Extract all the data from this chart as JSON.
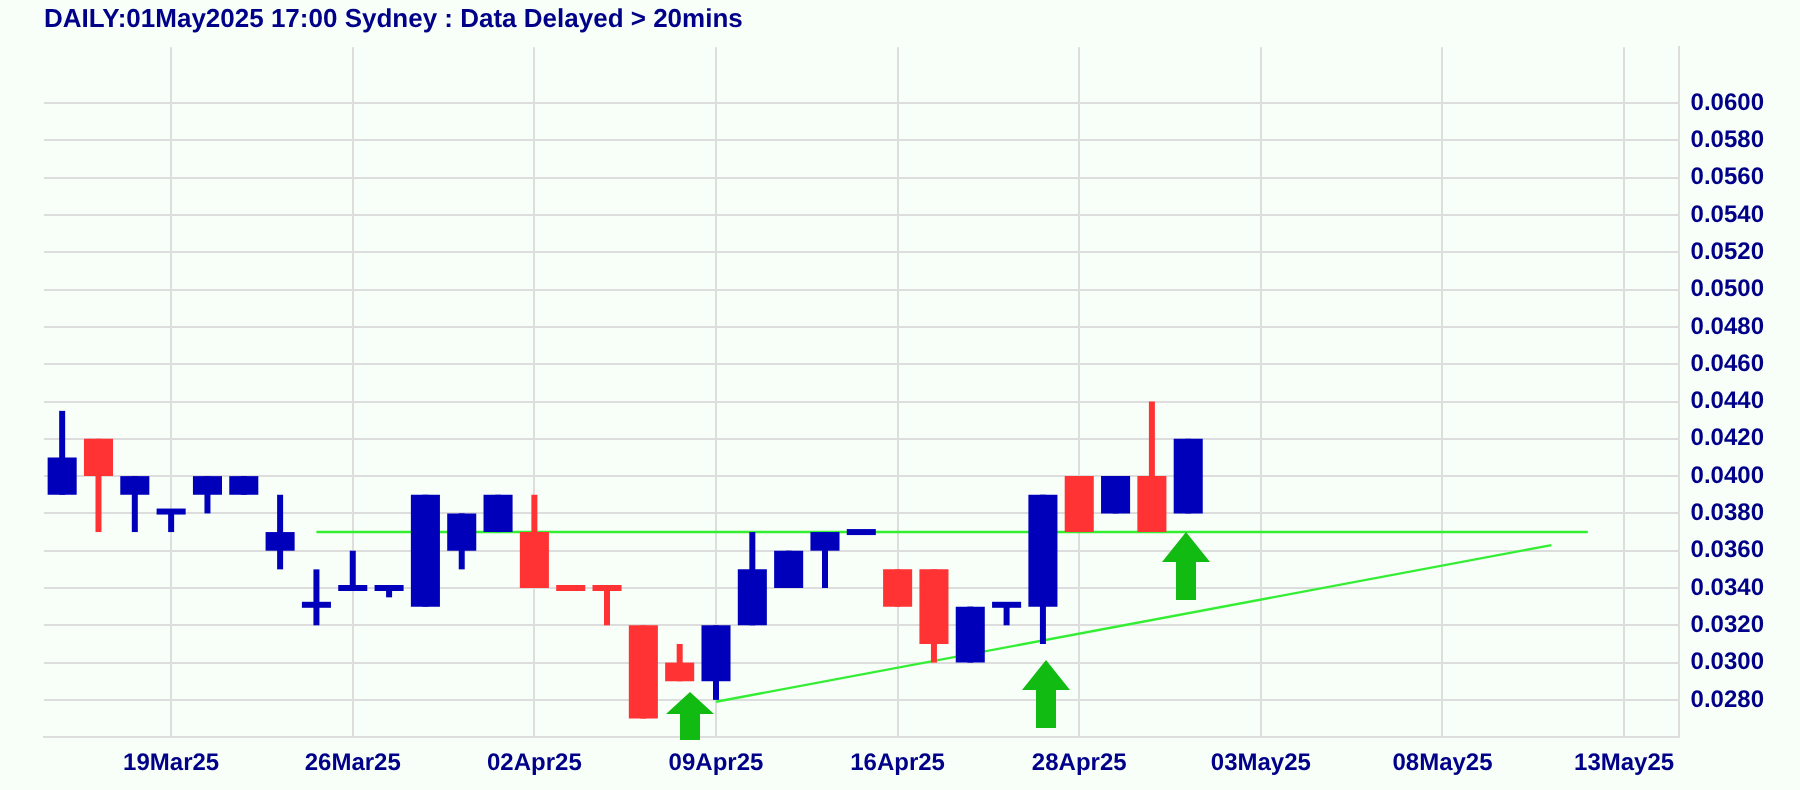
{
  "chart_data": {
    "type": "candlestick",
    "title": "DAILY:01May2025 17:00 Sydney : Data Delayed > 20mins",
    "categories": [
      null,
      null,
      null,
      "19Mar25",
      null,
      null,
      null,
      null,
      "26Mar25",
      null,
      null,
      null,
      null,
      "02Apr25",
      null,
      null,
      null,
      null,
      "09Apr25",
      null,
      null,
      null,
      null,
      "16Apr25",
      null,
      null,
      null,
      null,
      "28Apr25",
      null,
      null,
      null,
      null,
      "03May25",
      null,
      null,
      null,
      null,
      "08May25",
      null,
      null,
      null,
      null,
      "13May25",
      null
    ],
    "ohlc": [
      [
        0.039,
        0.0435,
        0.039,
        0.041
      ],
      [
        0.042,
        0.042,
        0.037,
        0.04
      ],
      [
        0.039,
        0.04,
        0.037,
        0.04
      ],
      [
        0.038,
        0.0382,
        0.037,
        0.0382
      ],
      [
        0.039,
        0.04,
        0.038,
        0.04
      ],
      [
        0.039,
        0.04,
        0.039,
        0.04
      ],
      [
        0.036,
        0.039,
        0.035,
        0.037
      ],
      [
        0.033,
        0.035,
        0.032,
        0.0332
      ],
      [
        0.0339,
        0.036,
        0.0339,
        0.0341
      ],
      [
        0.0339,
        0.0341,
        0.0335,
        0.0341
      ],
      [
        0.033,
        0.039,
        0.033,
        0.039
      ],
      [
        0.036,
        0.038,
        0.035,
        0.038
      ],
      [
        0.037,
        0.039,
        0.037,
        0.039
      ],
      [
        0.037,
        0.039,
        0.034,
        0.034
      ],
      [
        0.0341,
        0.0341,
        0.0339,
        0.0339
      ],
      [
        0.0341,
        0.0341,
        0.032,
        0.0339
      ],
      [
        0.032,
        0.032,
        0.027,
        0.027
      ],
      [
        0.03,
        0.031,
        0.029,
        0.029
      ],
      [
        0.029,
        0.032,
        0.028,
        0.032
      ],
      [
        0.032,
        0.037,
        0.032,
        0.035
      ],
      [
        0.034,
        0.036,
        0.034,
        0.036
      ],
      [
        0.036,
        0.037,
        0.034,
        0.037
      ],
      [
        0.0369,
        0.0371,
        0.0369,
        0.0371
      ],
      [
        0.035,
        0.035,
        0.033,
        0.033
      ],
      [
        0.035,
        0.035,
        0.03,
        0.031
      ],
      [
        0.03,
        0.033,
        0.03,
        0.033
      ],
      [
        0.033,
        0.0332,
        0.032,
        0.0332
      ],
      [
        0.033,
        0.039,
        0.031,
        0.039
      ],
      [
        0.04,
        0.04,
        0.037,
        0.037
      ],
      [
        0.038,
        0.04,
        0.038,
        0.04
      ],
      [
        0.04,
        0.044,
        0.037,
        0.037
      ],
      [
        0.038,
        0.042,
        0.038,
        0.042
      ],
      null,
      null,
      null,
      null,
      null,
      null,
      null,
      null,
      null,
      null,
      null,
      null,
      null
    ],
    "colors": [
      "#0000bb",
      "#ff3333",
      "#0000bb",
      "#0000bb",
      "#0000bb",
      "#0000bb",
      "#0000bb",
      "#0000bb",
      "#0000bb",
      "#0000bb",
      "#0000bb",
      "#0000bb",
      "#0000bb",
      "#ff3333",
      "#ff3333",
      "#ff3333",
      "#ff3333",
      "#ff3333",
      "#0000bb",
      "#0000bb",
      "#0000bb",
      "#0000bb",
      "#0000bb",
      "#ff3333",
      "#ff3333",
      "#0000bb",
      "#0000bb",
      "#0000bb",
      "#ff3333",
      "#0000bb",
      "#ff3333",
      "#0000bb",
      null,
      null,
      null,
      null,
      null,
      null,
      null,
      null,
      null,
      null,
      null,
      null,
      null
    ],
    "series": [
      {
        "type": "line",
        "color": "#33ee33",
        "values": [
          null,
          null,
          null,
          null,
          null,
          null,
          null,
          0.037,
          null,
          null,
          null,
          null,
          null,
          null,
          null,
          null,
          null,
          null,
          null,
          null,
          null,
          null,
          null,
          null,
          null,
          null,
          null,
          null,
          null,
          null,
          null,
          null,
          null,
          null,
          null,
          null,
          null,
          null,
          null,
          null,
          null,
          null,
          0.037,
          null,
          null
        ]
      },
      {
        "type": "line",
        "color": "#33ee33",
        "values": [
          null,
          null,
          null,
          null,
          null,
          null,
          null,
          null,
          null,
          null,
          null,
          null,
          null,
          null,
          null,
          null,
          null,
          null,
          0.0279,
          null,
          null,
          null,
          null,
          null,
          null,
          null,
          null,
          null,
          null,
          null,
          null,
          null,
          null,
          null,
          null,
          null,
          null,
          null,
          null,
          null,
          null,
          0.0363,
          null,
          null,
          null
        ]
      }
    ],
    "ylim": [
      0.026,
      0.063
    ],
    "yticks": [
      {
        "value": 0.028,
        "label": "0.0280"
      },
      {
        "value": 0.03,
        "label": "0.0300"
      },
      {
        "value": 0.032,
        "label": "0.0320"
      },
      {
        "value": 0.034,
        "label": "0.0340"
      },
      {
        "value": 0.036,
        "label": "0.0360"
      },
      {
        "value": 0.038,
        "label": "0.0380"
      },
      {
        "value": 0.04,
        "label": "0.0400"
      },
      {
        "value": 0.042,
        "label": "0.0420"
      },
      {
        "value": 0.044,
        "label": "0.0440"
      },
      {
        "value": 0.046,
        "label": "0.0460"
      },
      {
        "value": 0.048,
        "label": "0.0480"
      },
      {
        "value": 0.05,
        "label": "0.0500"
      },
      {
        "value": 0.052,
        "label": "0.0520"
      },
      {
        "value": 0.054,
        "label": "0.0540"
      },
      {
        "value": 0.056,
        "label": "0.0560"
      },
      {
        "value": 0.058,
        "label": "0.0580"
      },
      {
        "value": 0.06,
        "label": "0.0600"
      }
    ],
    "grid": true,
    "legend": false
  }
}
